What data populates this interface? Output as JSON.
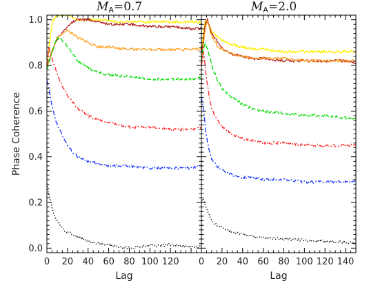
{
  "chart_data": [
    {
      "type": "line",
      "title_symbol": "M",
      "title_subscript": "A",
      "title_value": "=0.7",
      "xlabel": "Lag",
      "ylabel": "Phase Coherence",
      "xlim": [
        0,
        150
      ],
      "ylim": [
        -0.02,
        1.02
      ],
      "xticks": [
        0,
        20,
        40,
        60,
        80,
        100,
        120
      ],
      "xtick_labels": [
        "0",
        "20",
        "40",
        "60",
        "80",
        "100",
        "120"
      ],
      "yticks": [
        0.0,
        0.2,
        0.4,
        0.6,
        0.8,
        1.0
      ],
      "ytick_labels": [
        "0.0",
        "0.2",
        "0.4",
        "0.6",
        "0.8",
        "1.0"
      ],
      "grid": false,
      "series": [
        {
          "color": "#ffee00",
          "dash": "solid",
          "x": [
            0,
            3,
            6,
            10,
            15,
            20,
            25,
            30,
            40,
            50,
            70,
            100,
            130,
            150
          ],
          "y": [
            0.8,
            0.92,
            1.0,
            1.02,
            1.02,
            1.02,
            1.01,
            1.0,
            1.0,
            1.0,
            0.99,
            0.99,
            0.99,
            0.99
          ]
        },
        {
          "color": "#b22222",
          "dash": "solid",
          "x": [
            0,
            4,
            8,
            12,
            16,
            20,
            25,
            30,
            40,
            50,
            60,
            80,
            100,
            120,
            140,
            150
          ],
          "y": [
            0.8,
            0.85,
            0.9,
            0.93,
            0.95,
            0.97,
            0.99,
            1.0,
            1.0,
            0.99,
            0.98,
            0.98,
            0.97,
            0.97,
            0.96,
            0.96
          ]
        },
        {
          "color": "#ffa020",
          "dash": "solid",
          "x": [
            0,
            3,
            6,
            10,
            15,
            20,
            25,
            30,
            40,
            50,
            60,
            80,
            100,
            120,
            140,
            150
          ],
          "y": [
            0.78,
            0.84,
            0.88,
            0.92,
            0.94,
            0.95,
            0.94,
            0.92,
            0.9,
            0.88,
            0.88,
            0.87,
            0.87,
            0.87,
            0.87,
            0.87
          ]
        },
        {
          "color": "#00dd00",
          "dash": "dash",
          "x": [
            0,
            5,
            10,
            15,
            20,
            25,
            30,
            40,
            50,
            60,
            80,
            100,
            120,
            140,
            150
          ],
          "y": [
            0.78,
            0.86,
            0.92,
            0.91,
            0.88,
            0.85,
            0.82,
            0.79,
            0.77,
            0.76,
            0.75,
            0.74,
            0.74,
            0.74,
            0.75
          ]
        },
        {
          "color": "#ff2020",
          "dash": "dashdot",
          "x": [
            0,
            2,
            5,
            10,
            15,
            20,
            25,
            30,
            40,
            50,
            60,
            80,
            100,
            120,
            140,
            150
          ],
          "y": [
            0.8,
            0.88,
            0.83,
            0.76,
            0.71,
            0.67,
            0.64,
            0.61,
            0.58,
            0.56,
            0.55,
            0.53,
            0.53,
            0.52,
            0.52,
            0.53
          ]
        },
        {
          "color": "#1030ff",
          "dash": "dashdot",
          "x": [
            0,
            2,
            5,
            10,
            15,
            20,
            25,
            30,
            40,
            50,
            60,
            80,
            100,
            120,
            140,
            150
          ],
          "y": [
            0.73,
            0.7,
            0.62,
            0.54,
            0.49,
            0.45,
            0.42,
            0.4,
            0.38,
            0.37,
            0.36,
            0.36,
            0.35,
            0.35,
            0.35,
            0.36
          ]
        },
        {
          "color": "#000000",
          "dash": "dot",
          "x": [
            0,
            2,
            5,
            8,
            12,
            16,
            20,
            25,
            30,
            40,
            50,
            60,
            70,
            80,
            90,
            100,
            110,
            120,
            130,
            140,
            150
          ],
          "y": [
            0.28,
            0.23,
            0.18,
            0.13,
            0.1,
            0.08,
            0.07,
            0.06,
            0.05,
            0.03,
            0.02,
            0.015,
            0.005,
            0.0,
            0.005,
            0.01,
            0.01,
            0.015,
            0.01,
            0.005,
            0.005
          ]
        }
      ]
    },
    {
      "type": "line",
      "title_symbol": "M",
      "title_subscript": "A",
      "title_value": "=2.0",
      "xlabel": "Lag",
      "ylabel": "",
      "xlim": [
        0,
        150
      ],
      "ylim": [
        -0.02,
        1.02
      ],
      "xticks": [
        0,
        20,
        40,
        60,
        80,
        100,
        120,
        140
      ],
      "xtick_labels": [
        "0",
        "20",
        "40",
        "60",
        "80",
        "100",
        "120",
        "140"
      ],
      "yticks": [
        0.0,
        0.2,
        0.4,
        0.6,
        0.8,
        1.0
      ],
      "grid": false,
      "series": [
        {
          "color": "#ffee00",
          "dash": "solid",
          "x": [
            0,
            2,
            4,
            6,
            8,
            10,
            15,
            20,
            30,
            40,
            50,
            60,
            80,
            100,
            120,
            140,
            150
          ],
          "y": [
            0.85,
            0.95,
            1.0,
            0.99,
            0.97,
            0.95,
            0.93,
            0.91,
            0.89,
            0.88,
            0.87,
            0.87,
            0.86,
            0.86,
            0.86,
            0.86,
            0.86
          ]
        },
        {
          "color": "#b22222",
          "dash": "solid",
          "x": [
            0,
            2,
            4,
            6,
            8,
            10,
            15,
            20,
            25,
            30,
            40,
            50,
            60,
            80,
            100,
            120,
            140,
            150
          ],
          "y": [
            0.84,
            0.92,
            0.99,
            1.0,
            0.97,
            0.94,
            0.91,
            0.88,
            0.86,
            0.85,
            0.84,
            0.83,
            0.83,
            0.82,
            0.82,
            0.82,
            0.82,
            0.81
          ]
        },
        {
          "color": "#ffa020",
          "dash": "solid",
          "x": [
            0,
            2,
            4,
            6,
            8,
            10,
            15,
            20,
            30,
            40,
            50,
            60,
            80,
            100,
            120,
            140,
            150
          ],
          "y": [
            0.8,
            0.9,
            0.97,
            0.99,
            0.96,
            0.93,
            0.89,
            0.87,
            0.85,
            0.84,
            0.83,
            0.83,
            0.83,
            0.82,
            0.82,
            0.82,
            0.82
          ]
        },
        {
          "color": "#00dd00",
          "dash": "dash",
          "x": [
            0,
            2,
            4,
            6,
            8,
            10,
            15,
            20,
            30,
            40,
            50,
            60,
            80,
            100,
            120,
            140,
            150
          ],
          "y": [
            0.82,
            0.88,
            0.9,
            0.87,
            0.84,
            0.8,
            0.74,
            0.7,
            0.66,
            0.63,
            0.61,
            0.6,
            0.59,
            0.58,
            0.58,
            0.57,
            0.57
          ]
        },
        {
          "color": "#ff2020",
          "dash": "dashdot",
          "x": [
            0,
            2,
            4,
            6,
            8,
            10,
            15,
            20,
            30,
            40,
            50,
            60,
            80,
            100,
            120,
            140,
            150
          ],
          "y": [
            0.8,
            0.86,
            0.78,
            0.71,
            0.65,
            0.61,
            0.56,
            0.53,
            0.5,
            0.48,
            0.47,
            0.46,
            0.46,
            0.45,
            0.45,
            0.45,
            0.45
          ]
        },
        {
          "color": "#1030ff",
          "dash": "dashdot",
          "x": [
            0,
            2,
            4,
            6,
            8,
            10,
            15,
            20,
            30,
            40,
            50,
            60,
            80,
            100,
            120,
            140,
            150
          ],
          "y": [
            0.66,
            0.62,
            0.52,
            0.46,
            0.42,
            0.39,
            0.36,
            0.34,
            0.32,
            0.31,
            0.31,
            0.3,
            0.3,
            0.29,
            0.29,
            0.29,
            0.29
          ]
        },
        {
          "color": "#000000",
          "dash": "dot",
          "x": [
            0,
            2,
            4,
            6,
            8,
            10,
            15,
            20,
            30,
            40,
            50,
            60,
            80,
            100,
            120,
            140,
            150
          ],
          "y": [
            0.2,
            0.22,
            0.18,
            0.16,
            0.14,
            0.12,
            0.1,
            0.09,
            0.07,
            0.06,
            0.05,
            0.045,
            0.04,
            0.035,
            0.03,
            0.025,
            0.02
          ]
        }
      ]
    }
  ]
}
